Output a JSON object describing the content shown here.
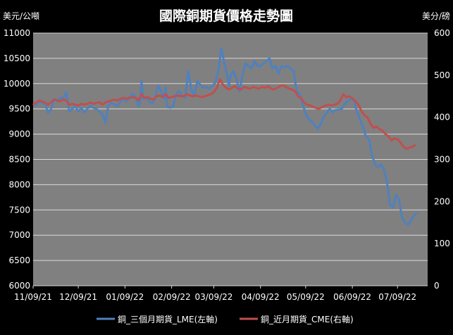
{
  "chart_data": {
    "type": "line",
    "title": "國際銅期貨價格走勢圖",
    "y_left_unit": "美元/公噸",
    "y_right_unit": "美分/磅",
    "y_left_range": [
      6000,
      11000
    ],
    "y_left_ticks": [
      "6000",
      "6500",
      "7000",
      "7500",
      "8000",
      "8500",
      "9000",
      "9500",
      "10000",
      "10500",
      "11000"
    ],
    "y_right_range": [
      0,
      600
    ],
    "y_right_ticks": [
      "0",
      "100",
      "200",
      "300",
      "400",
      "500",
      "600"
    ],
    "x_range": [
      "2021-11-09",
      "2022-07-29"
    ],
    "x_ticks": [
      {
        "date": "2021-11-09",
        "label": "11/09/21"
      },
      {
        "date": "2021-12-09",
        "label": "12/09/21"
      },
      {
        "date": "2022-01-09",
        "label": "01/09/22"
      },
      {
        "date": "2022-02-09",
        "label": "02/09/22"
      },
      {
        "date": "2022-03-09",
        "label": "03/09/22"
      },
      {
        "date": "2022-04-09",
        "label": "04/09/22"
      },
      {
        "date": "2022-05-09",
        "label": "05/09/22"
      },
      {
        "date": "2022-06-09",
        "label": "06/09/22"
      },
      {
        "date": "2022-07-09",
        "label": "07/09/22"
      }
    ],
    "plot_background": "#808080",
    "grid": true,
    "legend_position": "bottom",
    "series": [
      {
        "name": "銅_三個月期貨_LME(左軸)",
        "axis": "left",
        "color": "#4f81bd",
        "points": [
          [
            "2021-11-09",
            9600
          ],
          [
            "2021-11-11",
            9570
          ],
          [
            "2021-11-13",
            9650
          ],
          [
            "2021-11-15",
            9620
          ],
          [
            "2021-11-17",
            9600
          ],
          [
            "2021-11-19",
            9420
          ],
          [
            "2021-11-21",
            9500
          ],
          [
            "2021-11-23",
            9700
          ],
          [
            "2021-11-25",
            9650
          ],
          [
            "2021-11-27",
            9720
          ],
          [
            "2021-11-29",
            9700
          ],
          [
            "2021-12-01",
            9830
          ],
          [
            "2021-12-03",
            9450
          ],
          [
            "2021-12-05",
            9500
          ],
          [
            "2021-12-07",
            9550
          ],
          [
            "2021-12-09",
            9450
          ],
          [
            "2021-12-11",
            9520
          ],
          [
            "2021-12-13",
            9430
          ],
          [
            "2021-12-15",
            9500
          ],
          [
            "2021-12-17",
            9560
          ],
          [
            "2021-12-19",
            9520
          ],
          [
            "2021-12-21",
            9500
          ],
          [
            "2021-12-23",
            9450
          ],
          [
            "2021-12-25",
            9400
          ],
          [
            "2021-12-27",
            9220
          ],
          [
            "2021-12-29",
            9580
          ],
          [
            "2021-12-31",
            9620
          ],
          [
            "2022-01-02",
            9590
          ],
          [
            "2022-01-04",
            9550
          ],
          [
            "2022-01-06",
            9650
          ],
          [
            "2022-01-08",
            9700
          ],
          [
            "2022-01-10",
            9650
          ],
          [
            "2022-01-12",
            9720
          ],
          [
            "2022-01-14",
            9800
          ],
          [
            "2022-01-16",
            9750
          ],
          [
            "2022-01-18",
            9550
          ],
          [
            "2022-01-19",
            9620
          ],
          [
            "2022-01-20",
            10050
          ],
          [
            "2022-01-21",
            9700
          ],
          [
            "2022-01-23",
            9720
          ],
          [
            "2022-01-25",
            9660
          ],
          [
            "2022-01-27",
            9600
          ],
          [
            "2022-01-29",
            9700
          ],
          [
            "2022-01-31",
            9960
          ],
          [
            "2022-02-02",
            9850
          ],
          [
            "2022-02-04",
            9700
          ],
          [
            "2022-02-05",
            9920
          ],
          [
            "2022-02-06",
            9550
          ],
          [
            "2022-02-08",
            9520
          ],
          [
            "2022-02-10",
            9550
          ],
          [
            "2022-02-12",
            9800
          ],
          [
            "2022-02-14",
            9850
          ],
          [
            "2022-02-16",
            9750
          ],
          [
            "2022-02-18",
            9720
          ],
          [
            "2022-02-20",
            10250
          ],
          [
            "2022-02-22",
            9900
          ],
          [
            "2022-02-24",
            9750
          ],
          [
            "2022-02-26",
            10050
          ],
          [
            "2022-02-28",
            9980
          ],
          [
            "2022-03-02",
            9920
          ],
          [
            "2022-03-04",
            9930
          ],
          [
            "2022-03-06",
            9900
          ],
          [
            "2022-03-08",
            9950
          ],
          [
            "2022-03-10",
            10020
          ],
          [
            "2022-03-12",
            10250
          ],
          [
            "2022-03-14",
            10700
          ],
          [
            "2022-03-16",
            10400
          ],
          [
            "2022-03-18",
            10150
          ],
          [
            "2022-03-19",
            9950
          ],
          [
            "2022-03-20",
            10150
          ],
          [
            "2022-03-22",
            10250
          ],
          [
            "2022-03-24",
            10100
          ],
          [
            "2022-03-26",
            9850
          ],
          [
            "2022-03-28",
            10150
          ],
          [
            "2022-03-30",
            10400
          ],
          [
            "2022-04-01",
            10350
          ],
          [
            "2022-04-03",
            10300
          ],
          [
            "2022-04-05",
            10450
          ],
          [
            "2022-04-07",
            10350
          ],
          [
            "2022-04-09",
            10350
          ],
          [
            "2022-04-11",
            10400
          ],
          [
            "2022-04-13",
            10450
          ],
          [
            "2022-04-15",
            10500
          ],
          [
            "2022-04-17",
            10300
          ],
          [
            "2022-04-19",
            10350
          ],
          [
            "2022-04-21",
            10200
          ],
          [
            "2022-04-23",
            10350
          ],
          [
            "2022-04-25",
            10320
          ],
          [
            "2022-04-27",
            10350
          ],
          [
            "2022-04-29",
            10300
          ],
          [
            "2022-05-01",
            10250
          ],
          [
            "2022-05-03",
            9850
          ],
          [
            "2022-05-05",
            9800
          ],
          [
            "2022-05-07",
            9600
          ],
          [
            "2022-05-09",
            9400
          ],
          [
            "2022-05-11",
            9300
          ],
          [
            "2022-05-13",
            9250
          ],
          [
            "2022-05-15",
            9180
          ],
          [
            "2022-05-17",
            9100
          ],
          [
            "2022-05-19",
            9200
          ],
          [
            "2022-05-21",
            9350
          ],
          [
            "2022-05-23",
            9420
          ],
          [
            "2022-05-25",
            9500
          ],
          [
            "2022-05-27",
            9430
          ],
          [
            "2022-05-29",
            9480
          ],
          [
            "2022-05-31",
            9480
          ],
          [
            "2022-06-02",
            9500
          ],
          [
            "2022-06-04",
            9600
          ],
          [
            "2022-06-06",
            9650
          ],
          [
            "2022-06-08",
            9700
          ],
          [
            "2022-06-10",
            9680
          ],
          [
            "2022-06-12",
            9450
          ],
          [
            "2022-06-14",
            9300
          ],
          [
            "2022-06-16",
            9150
          ],
          [
            "2022-06-18",
            8950
          ],
          [
            "2022-06-20",
            8900
          ],
          [
            "2022-06-22",
            8600
          ],
          [
            "2022-06-24",
            8400
          ],
          [
            "2022-06-26",
            8350
          ],
          [
            "2022-06-28",
            8400
          ],
          [
            "2022-06-30",
            8300
          ],
          [
            "2022-07-02",
            8050
          ],
          [
            "2022-07-04",
            7600
          ],
          [
            "2022-07-06",
            7550
          ],
          [
            "2022-07-08",
            7800
          ],
          [
            "2022-07-10",
            7700
          ],
          [
            "2022-07-12",
            7350
          ],
          [
            "2022-07-14",
            7250
          ],
          [
            "2022-07-16",
            7200
          ],
          [
            "2022-07-18",
            7300
          ],
          [
            "2022-07-20",
            7400
          ],
          [
            "2022-07-22",
            7450
          ]
        ]
      },
      {
        "name": "銅_近月期貨_CME(右軸)",
        "axis": "right",
        "color": "#c0504d",
        "points": [
          [
            "2021-11-09",
            430
          ],
          [
            "2021-11-11",
            435
          ],
          [
            "2021-11-13",
            440
          ],
          [
            "2021-11-15",
            438
          ],
          [
            "2021-11-17",
            435
          ],
          [
            "2021-11-19",
            430
          ],
          [
            "2021-11-21",
            436
          ],
          [
            "2021-11-23",
            442
          ],
          [
            "2021-11-25",
            440
          ],
          [
            "2021-11-27",
            438
          ],
          [
            "2021-11-29",
            442
          ],
          [
            "2021-12-01",
            440
          ],
          [
            "2021-12-03",
            430
          ],
          [
            "2021-12-05",
            432
          ],
          [
            "2021-12-07",
            430
          ],
          [
            "2021-12-09",
            428
          ],
          [
            "2021-12-11",
            432
          ],
          [
            "2021-12-13",
            430
          ],
          [
            "2021-12-15",
            432
          ],
          [
            "2021-12-17",
            435
          ],
          [
            "2021-12-19",
            432
          ],
          [
            "2021-12-21",
            434
          ],
          [
            "2021-12-23",
            436
          ],
          [
            "2021-12-25",
            430
          ],
          [
            "2021-12-27",
            435
          ],
          [
            "2021-12-29",
            438
          ],
          [
            "2021-12-31",
            440
          ],
          [
            "2022-01-02",
            442
          ],
          [
            "2022-01-04",
            440
          ],
          [
            "2022-01-06",
            444
          ],
          [
            "2022-01-08",
            446
          ],
          [
            "2022-01-10",
            444
          ],
          [
            "2022-01-12",
            446
          ],
          [
            "2022-01-14",
            448
          ],
          [
            "2022-01-16",
            446
          ],
          [
            "2022-01-18",
            440
          ],
          [
            "2022-01-20",
            455
          ],
          [
            "2022-01-22",
            446
          ],
          [
            "2022-01-24",
            448
          ],
          [
            "2022-01-26",
            444
          ],
          [
            "2022-01-28",
            442
          ],
          [
            "2022-01-30",
            450
          ],
          [
            "2022-02-01",
            452
          ],
          [
            "2022-02-03",
            448
          ],
          [
            "2022-02-05",
            455
          ],
          [
            "2022-02-07",
            446
          ],
          [
            "2022-02-09",
            448
          ],
          [
            "2022-02-11",
            450
          ],
          [
            "2022-02-13",
            452
          ],
          [
            "2022-02-15",
            450
          ],
          [
            "2022-02-17",
            450
          ],
          [
            "2022-02-19",
            455
          ],
          [
            "2022-02-21",
            452
          ],
          [
            "2022-02-23",
            450
          ],
          [
            "2022-02-25",
            452
          ],
          [
            "2022-02-27",
            450
          ],
          [
            "2022-03-01",
            448
          ],
          [
            "2022-03-03",
            450
          ],
          [
            "2022-03-05",
            452
          ],
          [
            "2022-03-07",
            455
          ],
          [
            "2022-03-09",
            460
          ],
          [
            "2022-03-11",
            470
          ],
          [
            "2022-03-13",
            490
          ],
          [
            "2022-03-15",
            478
          ],
          [
            "2022-03-17",
            470
          ],
          [
            "2022-03-19",
            466
          ],
          [
            "2022-03-21",
            470
          ],
          [
            "2022-03-23",
            474
          ],
          [
            "2022-03-25",
            468
          ],
          [
            "2022-03-27",
            466
          ],
          [
            "2022-03-29",
            472
          ],
          [
            "2022-03-31",
            470
          ],
          [
            "2022-04-02",
            468
          ],
          [
            "2022-04-04",
            472
          ],
          [
            "2022-04-06",
            470
          ],
          [
            "2022-04-08",
            468
          ],
          [
            "2022-04-10",
            472
          ],
          [
            "2022-04-12",
            470
          ],
          [
            "2022-04-14",
            474
          ],
          [
            "2022-04-16",
            468
          ],
          [
            "2022-04-18",
            466
          ],
          [
            "2022-04-20",
            470
          ],
          [
            "2022-04-22",
            474
          ],
          [
            "2022-04-24",
            476
          ],
          [
            "2022-04-26",
            472
          ],
          [
            "2022-04-28",
            468
          ],
          [
            "2022-04-30",
            466
          ],
          [
            "2022-05-02",
            462
          ],
          [
            "2022-05-04",
            450
          ],
          [
            "2022-05-06",
            445
          ],
          [
            "2022-05-08",
            435
          ],
          [
            "2022-05-10",
            430
          ],
          [
            "2022-05-12",
            428
          ],
          [
            "2022-05-14",
            425
          ],
          [
            "2022-05-16",
            422
          ],
          [
            "2022-05-18",
            420
          ],
          [
            "2022-05-20",
            425
          ],
          [
            "2022-05-22",
            428
          ],
          [
            "2022-05-24",
            430
          ],
          [
            "2022-05-26",
            428
          ],
          [
            "2022-05-28",
            430
          ],
          [
            "2022-05-30",
            432
          ],
          [
            "2022-06-01",
            440
          ],
          [
            "2022-06-03",
            455
          ],
          [
            "2022-06-05",
            448
          ],
          [
            "2022-06-07",
            450
          ],
          [
            "2022-06-09",
            445
          ],
          [
            "2022-06-11",
            438
          ],
          [
            "2022-06-13",
            430
          ],
          [
            "2022-06-15",
            415
          ],
          [
            "2022-06-17",
            405
          ],
          [
            "2022-06-19",
            400
          ],
          [
            "2022-06-21",
            385
          ],
          [
            "2022-06-23",
            375
          ],
          [
            "2022-06-25",
            378
          ],
          [
            "2022-06-27",
            372
          ],
          [
            "2022-06-29",
            368
          ],
          [
            "2022-07-01",
            360
          ],
          [
            "2022-07-03",
            355
          ],
          [
            "2022-07-05",
            345
          ],
          [
            "2022-07-07",
            350
          ],
          [
            "2022-07-09",
            348
          ],
          [
            "2022-07-11",
            340
          ],
          [
            "2022-07-13",
            330
          ],
          [
            "2022-07-15",
            325
          ],
          [
            "2022-07-17",
            328
          ],
          [
            "2022-07-19",
            330
          ],
          [
            "2022-07-21",
            335
          ]
        ]
      }
    ]
  }
}
